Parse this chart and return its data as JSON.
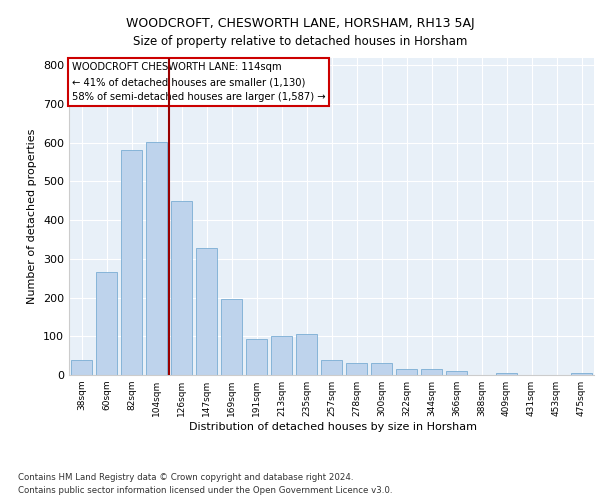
{
  "title1": "WOODCROFT, CHESWORTH LANE, HORSHAM, RH13 5AJ",
  "title2": "Size of property relative to detached houses in Horsham",
  "xlabel": "Distribution of detached houses by size in Horsham",
  "ylabel": "Number of detached properties",
  "categories": [
    "38sqm",
    "60sqm",
    "82sqm",
    "104sqm",
    "126sqm",
    "147sqm",
    "169sqm",
    "191sqm",
    "213sqm",
    "235sqm",
    "257sqm",
    "278sqm",
    "300sqm",
    "322sqm",
    "344sqm",
    "366sqm",
    "388sqm",
    "409sqm",
    "431sqm",
    "453sqm",
    "475sqm"
  ],
  "values": [
    38,
    265,
    580,
    603,
    450,
    328,
    195,
    92,
    100,
    105,
    38,
    32,
    30,
    15,
    15,
    10,
    0,
    6,
    0,
    0,
    6
  ],
  "bar_color": "#bed3ec",
  "bar_edge_color": "#7aadd4",
  "vline_x": 3.5,
  "vline_color": "#990000",
  "annotation_title": "WOODCROFT CHESWORTH LANE: 114sqm",
  "annotation_line2": "← 41% of detached houses are smaller (1,130)",
  "annotation_line3": "58% of semi-detached houses are larger (1,587) →",
  "annotation_box_color": "#cc0000",
  "ylim": [
    0,
    820
  ],
  "yticks": [
    0,
    100,
    200,
    300,
    400,
    500,
    600,
    700,
    800
  ],
  "footnote1": "Contains HM Land Registry data © Crown copyright and database right 2024.",
  "footnote2": "Contains public sector information licensed under the Open Government Licence v3.0.",
  "bg_color": "#e8f0f8"
}
